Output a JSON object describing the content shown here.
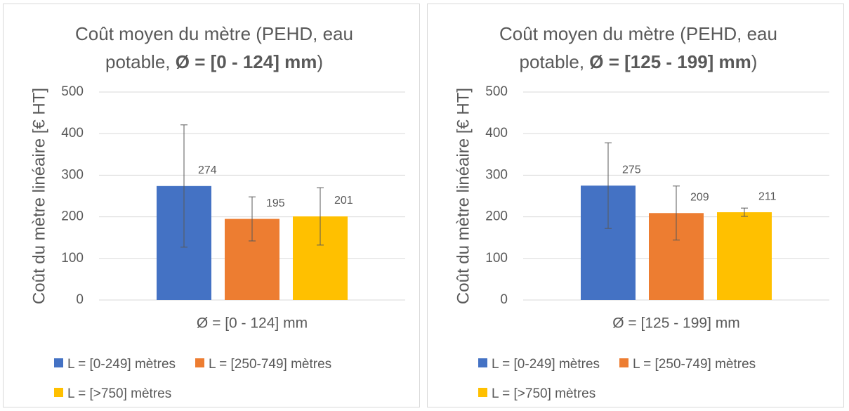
{
  "chart_data": [
    {
      "type": "bar",
      "title": {
        "text": "Coût moyen du mètre (PEHD, eau potable,",
        "emphasis": "Ø = [0 - 124] mm",
        "end": ")"
      },
      "y_label": "Coût du mètre linéaire [€ HT]",
      "categories": [
        "Ø = [0 - 124] mm"
      ],
      "series": [
        {
          "name": "L = [0-249] mètres",
          "color": "#4472c4",
          "values": [
            274
          ],
          "errors": [
            147
          ]
        },
        {
          "name": "L = [250-749] mètres",
          "color": "#ed7d31",
          "values": [
            195
          ],
          "errors": [
            53
          ]
        },
        {
          "name": "L = [>750] mètres",
          "color": "#ffc000",
          "values": [
            201
          ],
          "errors": [
            69
          ]
        }
      ],
      "ylim": [
        0,
        500
      ],
      "yticks": [
        0,
        100,
        200,
        300,
        400,
        500
      ],
      "grid": true
    },
    {
      "type": "bar",
      "title": {
        "text": "Coût moyen du mètre (PEHD, eau potable,",
        "emphasis": "Ø = [125 - 199] mm",
        "end": ")"
      },
      "y_label": "Coût du mètre linéaire [€ HT]",
      "categories": [
        "Ø = [125 - 199] mm"
      ],
      "series": [
        {
          "name": "L = [0-249] mètres",
          "color": "#4472c4",
          "values": [
            275
          ],
          "errors": [
            103
          ]
        },
        {
          "name": "L = [250-749] mètres",
          "color": "#ed7d31",
          "values": [
            209
          ],
          "errors": [
            65
          ]
        },
        {
          "name": "L = [>750] mètres",
          "color": "#ffc000",
          "values": [
            211
          ],
          "errors": [
            10
          ]
        }
      ],
      "ylim": [
        0,
        500
      ],
      "yticks": [
        0,
        100,
        200,
        300,
        400,
        500
      ],
      "grid": true
    }
  ]
}
